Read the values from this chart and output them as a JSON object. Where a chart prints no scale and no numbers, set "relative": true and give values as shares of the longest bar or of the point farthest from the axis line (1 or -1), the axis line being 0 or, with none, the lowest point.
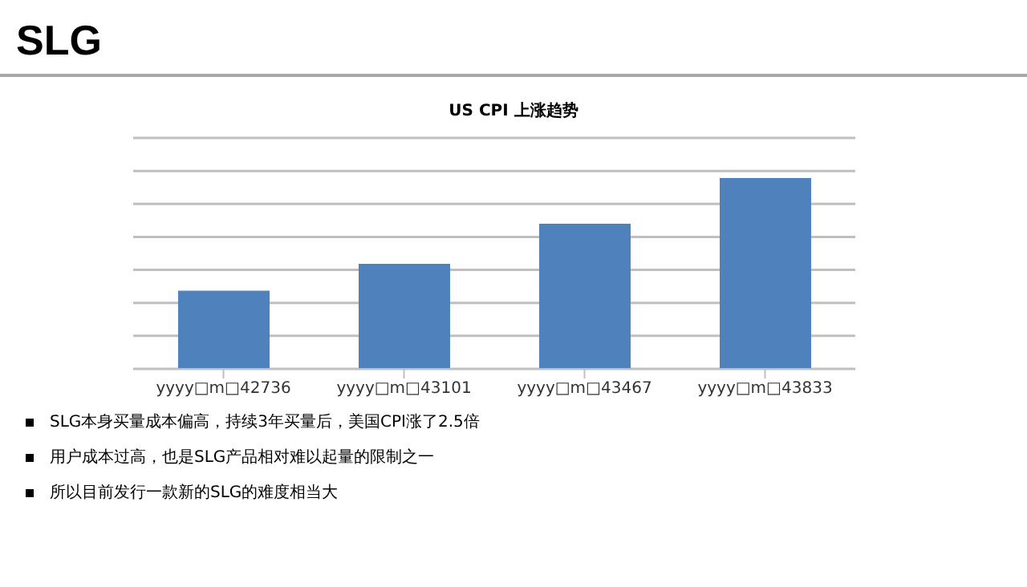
{
  "chart_data": {
    "type": "bar",
    "title": "SLG",
    "subtitle": "US CPI  上涨趋势",
    "categories": [
      "yyyy□m□42736",
      "yyyy□m□43101",
      "yyyy□m□43467",
      "yyyy□m□43833"
    ],
    "values": [
      0.41,
      0.55,
      0.76,
      1
    ],
    "color": "#4f81bd",
    "relative": true,
    "grid": "y",
    "legend": false,
    "annotations": [
      "SLG本身买量成本偏高，持续3年买量后，美国CPI涨了2.5倍",
      "用户成本过高，也是SLG产品相对难以起量的限制之一",
      "所以目前发行一款新的SLG的难度相当大"
    ]
  }
}
